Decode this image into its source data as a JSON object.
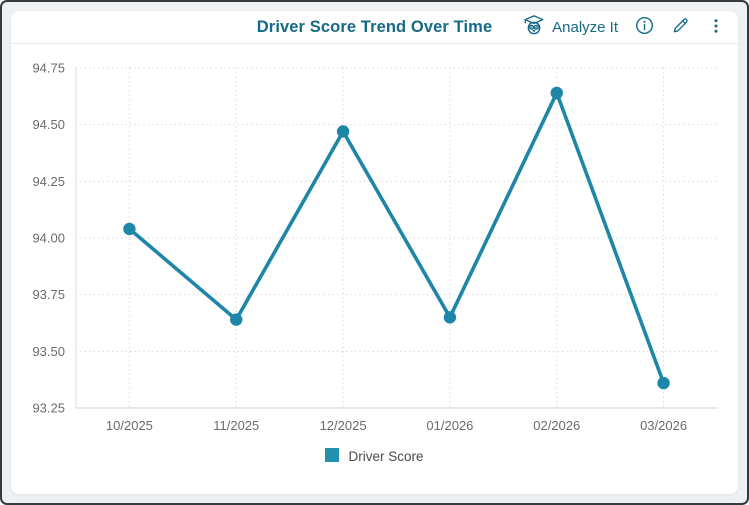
{
  "header": {
    "title": "Driver Score Trend Over Time",
    "analyze_button_label": "Analyze It"
  },
  "legend": {
    "label": "Driver Score"
  },
  "colors": {
    "title_teal": "#156a85",
    "line_teal": "#1e86a8",
    "legend_teal": "#2191ae",
    "axis_text": "#6b6b6b",
    "grid_line": "#c9c9c9"
  },
  "chart_data": {
    "type": "line",
    "title": "Driver Score Trend Over Time",
    "x": [
      "10/2025",
      "11/2025",
      "12/2025",
      "01/2026",
      "02/2026",
      "03/2026"
    ],
    "series": [
      {
        "name": "Driver Score",
        "values": [
          94.04,
          93.64,
          94.47,
          93.65,
          94.64,
          93.36
        ]
      }
    ],
    "ylim": [
      93.25,
      94.75
    ],
    "yticks": [
      "94.75",
      "94.50",
      "94.25",
      "94.00",
      "93.75",
      "93.50",
      "93.25"
    ],
    "grid": "dotted",
    "legend_position": "bottom",
    "xlabel": "",
    "ylabel": ""
  }
}
